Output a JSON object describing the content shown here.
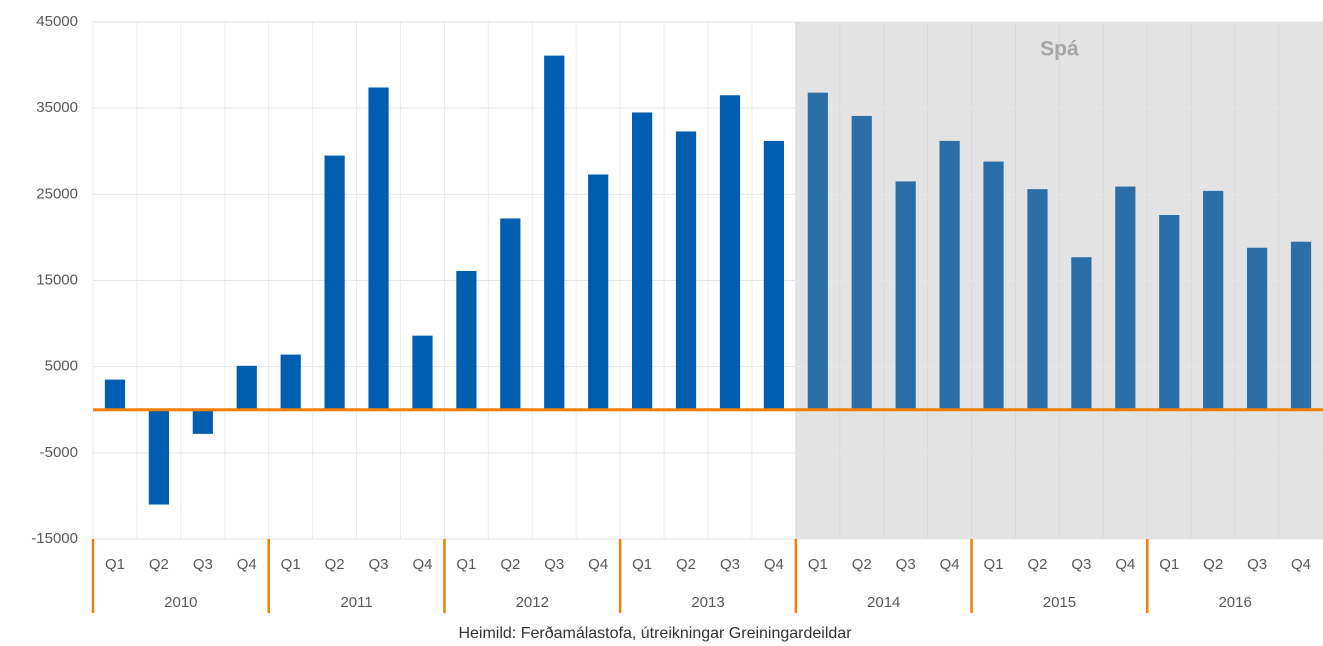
{
  "chart_data": {
    "type": "bar",
    "categories": [
      "Q1",
      "Q2",
      "Q3",
      "Q4",
      "Q1",
      "Q2",
      "Q3",
      "Q4",
      "Q1",
      "Q2",
      "Q3",
      "Q4",
      "Q1",
      "Q2",
      "Q3",
      "Q4",
      "Q1",
      "Q2",
      "Q3",
      "Q4",
      "Q1",
      "Q2",
      "Q3",
      "Q4",
      "Q1",
      "Q2",
      "Q3",
      "Q4"
    ],
    "groups": [
      "2010",
      "2011",
      "2012",
      "2013",
      "2014",
      "2015",
      "2016"
    ],
    "values": [
      3500,
      -11000,
      -2800,
      5100,
      6400,
      29500,
      37400,
      8600,
      16100,
      22200,
      41100,
      27300,
      34500,
      32300,
      36500,
      31200,
      36800,
      34100,
      26500,
      31200,
      28800,
      25600,
      17700,
      25900,
      22600,
      25400,
      18800,
      19500
    ],
    "color": "#005eb0",
    "forecast": {
      "label": "Spá",
      "from": "2014",
      "bar_color": "#2b6ea8",
      "shade": "#e3e3e3"
    },
    "zero_line_color": "#f07f0a",
    "ylim": [
      -15000,
      45000
    ],
    "yticks": [
      -15000,
      -5000,
      5000,
      15000,
      25000,
      35000,
      45000
    ],
    "grid": true,
    "source": "Heimild: Ferðamálastofa, útreikningar Greiningardeildar"
  }
}
